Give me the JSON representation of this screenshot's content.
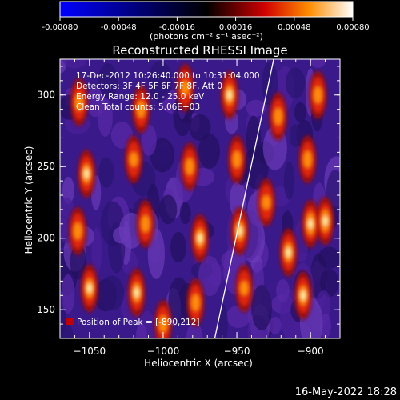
{
  "colorbar": {
    "ticks": [
      "-0.00080",
      "-0.00048",
      "-0.00016",
      "0.00016",
      "0.00048",
      "0.00080"
    ],
    "tick_values": [
      -0.0008,
      -0.00048,
      -0.00016,
      0.00016,
      0.00048,
      0.0008
    ],
    "range": [
      -0.0008,
      0.0008
    ],
    "unit_label": "(photons cm⁻² s⁻¹ asec⁻²)"
  },
  "chart_data": {
    "type": "heatmap",
    "title": "Reconstructed RHESSI Image",
    "xlabel": "Heliocentric X (arcsec)",
    "ylabel": "Heliocentric Y (arcsec)",
    "xlim": [
      -1070,
      -880
    ],
    "ylim": [
      130,
      325
    ],
    "x_ticks": [
      -1050,
      -1000,
      -950,
      -900
    ],
    "y_ticks": [
      150,
      200,
      250,
      300
    ],
    "x_tick_labels": [
      "−1050",
      "−1000",
      "−950",
      "−900"
    ],
    "y_tick_labels": [
      "150",
      "200",
      "250",
      "300"
    ],
    "limb_line": [
      [
        -965,
        130
      ],
      [
        -925,
        325
      ]
    ],
    "blobs": [
      {
        "x": -1057,
        "y": 295,
        "value": 0.0006
      },
      {
        "x": -1052,
        "y": 245,
        "value": 0.0007
      },
      {
        "x": -1058,
        "y": 205,
        "value": 0.0006
      },
      {
        "x": -1050,
        "y": 165,
        "value": 0.0007
      },
      {
        "x": -1015,
        "y": 290,
        "value": 0.0006
      },
      {
        "x": -1020,
        "y": 255,
        "value": 0.0005
      },
      {
        "x": -1012,
        "y": 210,
        "value": 0.0006
      },
      {
        "x": -1018,
        "y": 162,
        "value": 0.0007
      },
      {
        "x": -1000,
        "y": 140,
        "value": 0.0006
      },
      {
        "x": -985,
        "y": 305,
        "value": 0.0005
      },
      {
        "x": -982,
        "y": 250,
        "value": 0.0006
      },
      {
        "x": -975,
        "y": 200,
        "value": 0.0007
      },
      {
        "x": -978,
        "y": 155,
        "value": 0.0006
      },
      {
        "x": -955,
        "y": 300,
        "value": 0.0007
      },
      {
        "x": -950,
        "y": 255,
        "value": 0.0006
      },
      {
        "x": -948,
        "y": 205,
        "value": 0.0007
      },
      {
        "x": -945,
        "y": 165,
        "value": 0.0005
      },
      {
        "x": -922,
        "y": 285,
        "value": 0.0006
      },
      {
        "x": -930,
        "y": 225,
        "value": 0.0005
      },
      {
        "x": -915,
        "y": 190,
        "value": 0.0007
      },
      {
        "x": -900,
        "y": 210,
        "value": 0.0008
      },
      {
        "x": -902,
        "y": 255,
        "value": 0.0006
      },
      {
        "x": -895,
        "y": 300,
        "value": 0.0006
      },
      {
        "x": -905,
        "y": 160,
        "value": 0.0007
      },
      {
        "x": -890,
        "y": 212,
        "value": 0.0008
      }
    ]
  },
  "info": {
    "line1": "17-Dec-2012 10:26:40.000 to 10:31:04.000",
    "line2": "Detectors: 3F 4F 5F 6F 7F 8F, Att 0",
    "line3": "Energy Range: 12.0 - 25.0 keV",
    "line4": "Clean     Total counts: 5.06E+03"
  },
  "peak_label": "Position of Peak = [-890,212]",
  "timestamp": "16-May-2022 18:28"
}
